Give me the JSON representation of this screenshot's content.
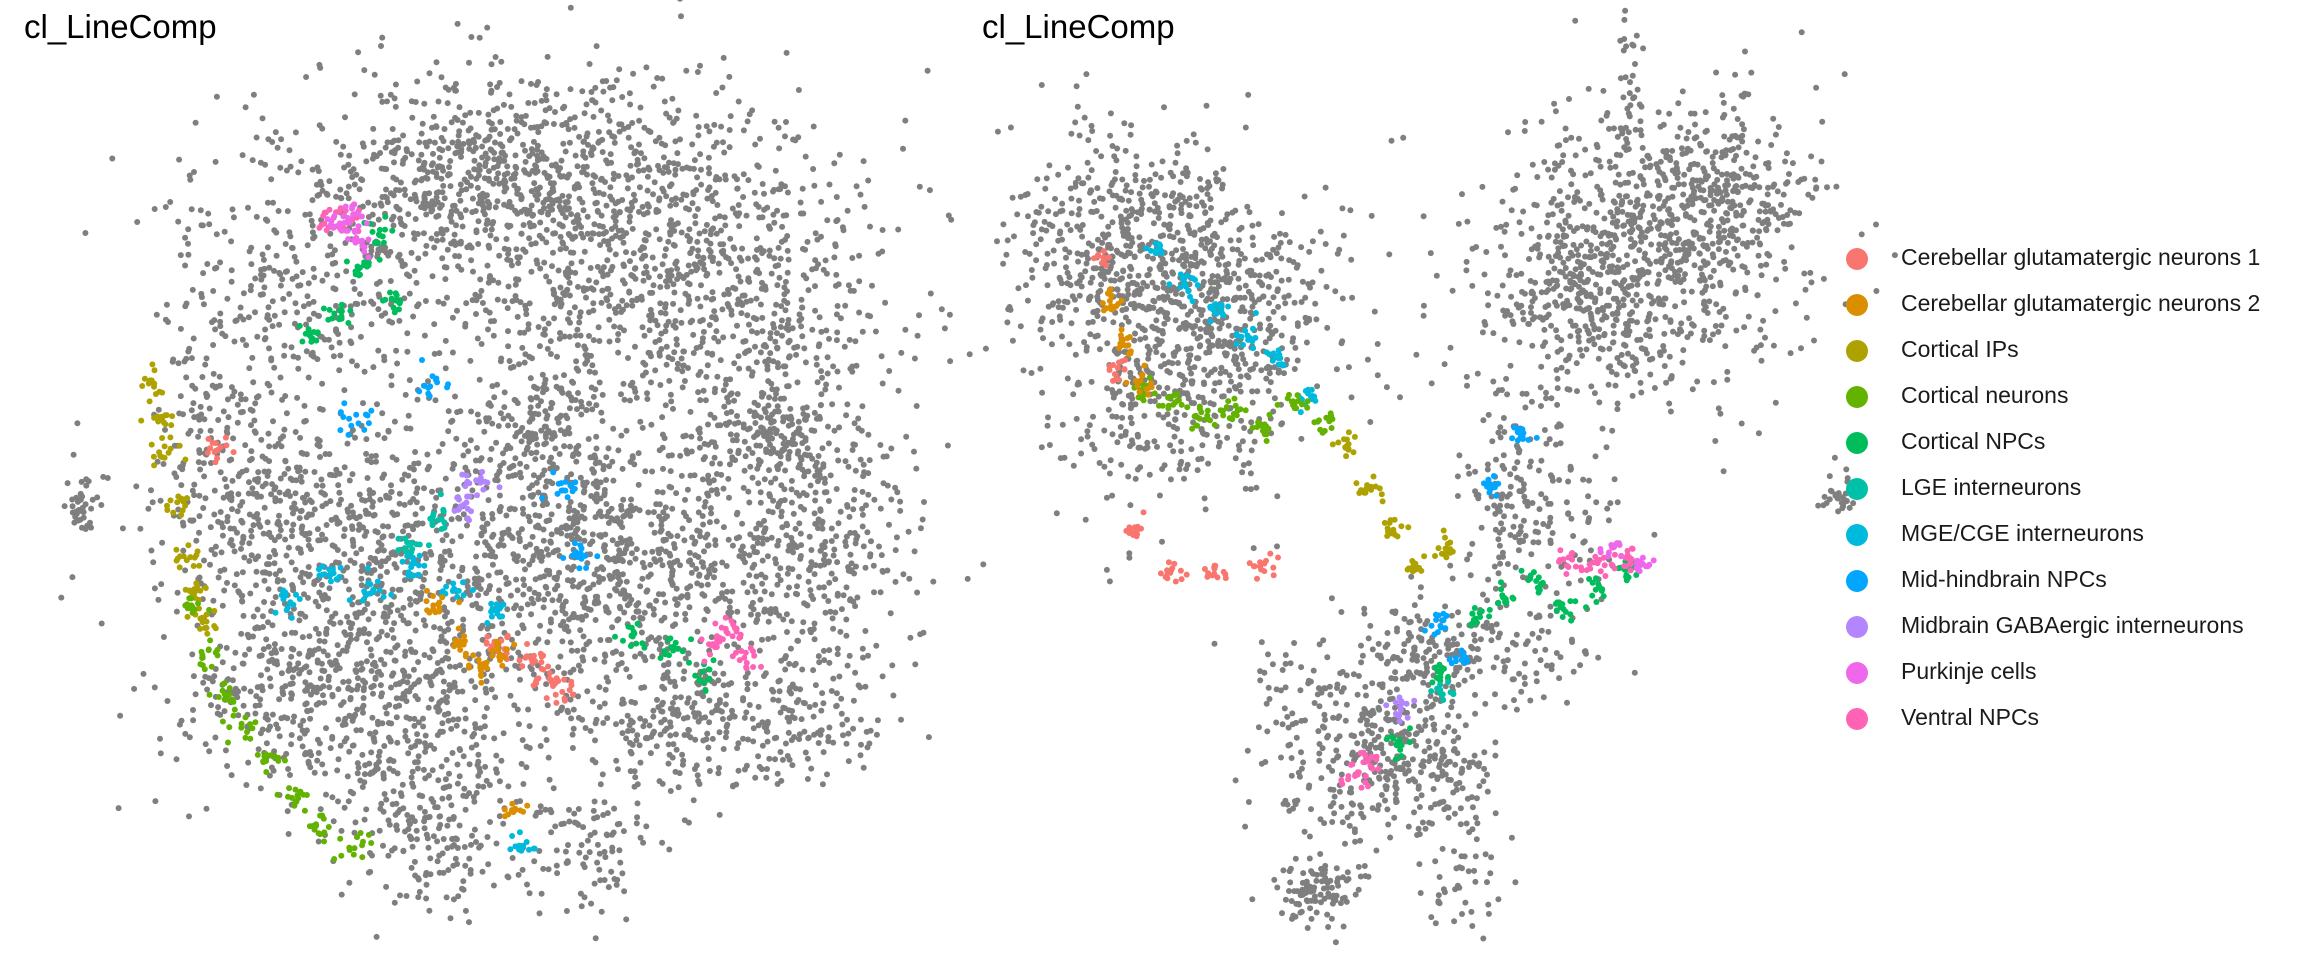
{
  "chart_data": [
    {
      "type": "scatter",
      "title": "cl_LineComp",
      "embedding": "left panel (circular embedding)",
      "xlabel": "",
      "ylabel": "",
      "grid": false,
      "legend": "none",
      "background_color": "#7f7f7f",
      "clusters": [
        {
          "category": "Cortical IPs",
          "x": [
            0.11,
            0.12,
            0.13,
            0.14,
            0.15,
            0.16,
            0.17
          ],
          "y": [
            0.36,
            0.4,
            0.44,
            0.5,
            0.56,
            0.6,
            0.64
          ]
        },
        {
          "category": "Cortical neurons",
          "x": [
            0.16,
            0.18,
            0.2,
            0.22,
            0.25,
            0.28,
            0.31,
            0.35
          ],
          "y": [
            0.62,
            0.68,
            0.72,
            0.76,
            0.8,
            0.84,
            0.88,
            0.9
          ]
        },
        {
          "category": "Cortical NPCs",
          "x": [
            0.3,
            0.33,
            0.36,
            0.38,
            0.4,
            0.68,
            0.73,
            0.77
          ],
          "y": [
            0.3,
            0.28,
            0.22,
            0.18,
            0.26,
            0.65,
            0.67,
            0.7
          ]
        },
        {
          "category": "MGE/CGE interneurons",
          "x": [
            0.27,
            0.32,
            0.37,
            0.42,
            0.47,
            0.52,
            0.55
          ],
          "y": [
            0.62,
            0.58,
            0.6,
            0.57,
            0.6,
            0.63,
            0.9
          ]
        },
        {
          "category": "Cerebellar glutamatergic neurons 1",
          "x": [
            0.52,
            0.56,
            0.58,
            0.6,
            0.19
          ],
          "y": [
            0.66,
            0.68,
            0.7,
            0.72,
            0.43
          ]
        },
        {
          "category": "Cerebellar glutamatergic neurons 2",
          "x": [
            0.45,
            0.48,
            0.5,
            0.52,
            0.54
          ],
          "y": [
            0.62,
            0.66,
            0.69,
            0.68,
            0.86
          ]
        },
        {
          "category": "Ventral NPCs",
          "x": [
            0.78,
            0.8,
            0.82,
            0.32,
            0.34
          ],
          "y": [
            0.66,
            0.65,
            0.68,
            0.16,
            0.17
          ]
        },
        {
          "category": "Purkinje cells",
          "x": [
            0.33,
            0.36,
            0.35
          ],
          "y": [
            0.17,
            0.19,
            0.16
          ]
        },
        {
          "category": "Mid-hindbrain NPCs",
          "x": [
            0.35,
            0.44,
            0.6,
            0.62
          ],
          "y": [
            0.4,
            0.36,
            0.48,
            0.56
          ]
        },
        {
          "category": "LGE interneurons",
          "x": [
            0.42,
            0.45
          ],
          "y": [
            0.55,
            0.52
          ]
        },
        {
          "category": "Midbrain GABAergic interneurons",
          "x": [
            0.48,
            0.5
          ],
          "y": [
            0.5,
            0.47
          ]
        }
      ]
    },
    {
      "type": "scatter",
      "title": "cl_LineComp",
      "embedding": "right panel (branched embedding)",
      "xlabel": "",
      "ylabel": "",
      "grid": false,
      "legend": "right",
      "background_color": "#7f7f7f",
      "clusters": [
        {
          "category": "MGE/CGE interneurons",
          "x": [
            0.18,
            0.22,
            0.26,
            0.3,
            0.34,
            0.38
          ],
          "y": [
            0.2,
            0.24,
            0.27,
            0.3,
            0.33,
            0.37
          ]
        },
        {
          "category": "Cortical neurons",
          "x": [
            0.16,
            0.2,
            0.24,
            0.28,
            0.32,
            0.36,
            0.4
          ],
          "y": [
            0.37,
            0.38,
            0.4,
            0.39,
            0.41,
            0.38,
            0.4
          ]
        },
        {
          "category": "Cortical IPs",
          "x": [
            0.43,
            0.46,
            0.49,
            0.52,
            0.56
          ],
          "y": [
            0.43,
            0.48,
            0.53,
            0.57,
            0.55
          ]
        },
        {
          "category": "Cerebellar glutamatergic neurons 1",
          "x": [
            0.11,
            0.13,
            0.15,
            0.2,
            0.26,
            0.32
          ],
          "y": [
            0.21,
            0.34,
            0.53,
            0.58,
            0.58,
            0.57
          ]
        },
        {
          "category": "Cerebellar glutamatergic neurons 2",
          "x": [
            0.12,
            0.14,
            0.16
          ],
          "y": [
            0.26,
            0.31,
            0.36
          ]
        },
        {
          "category": "Cortical NPCs",
          "x": [
            0.6,
            0.64,
            0.68,
            0.72,
            0.76,
            0.8,
            0.55,
            0.5
          ],
          "y": [
            0.63,
            0.61,
            0.59,
            0.62,
            0.6,
            0.58,
            0.7,
            0.78
          ]
        },
        {
          "category": "Ventral NPCs",
          "x": [
            0.72,
            0.76,
            0.8,
            0.44,
            0.46
          ],
          "y": [
            0.56,
            0.57,
            0.56,
            0.82,
            0.8
          ]
        },
        {
          "category": "Purkinje cells",
          "x": [
            0.78,
            0.82
          ],
          "y": [
            0.55,
            0.57
          ]
        },
        {
          "category": "Mid-hindbrain NPCs",
          "x": [
            0.55,
            0.58,
            0.62,
            0.66
          ],
          "y": [
            0.64,
            0.68,
            0.48,
            0.42
          ]
        },
        {
          "category": "LGE interneurons",
          "x": [
            0.56
          ],
          "y": [
            0.72
          ]
        },
        {
          "category": "Midbrain GABAergic interneurons",
          "x": [
            0.5
          ],
          "y": [
            0.74
          ]
        }
      ]
    }
  ],
  "legend": {
    "items": [
      {
        "label": "Cerebellar glutamatergic neurons 1",
        "color": "#F8766D"
      },
      {
        "label": "Cerebellar glutamatergic neurons 2",
        "color": "#DB8E00"
      },
      {
        "label": "Cortical IPs",
        "color": "#AEA200"
      },
      {
        "label": "Cortical neurons",
        "color": "#64B200"
      },
      {
        "label": "Cortical NPCs",
        "color": "#00BD5C"
      },
      {
        "label": "LGE interneurons",
        "color": "#00C1A7"
      },
      {
        "label": "MGE/CGE interneurons",
        "color": "#00BADE"
      },
      {
        "label": "Mid-hindbrain NPCs",
        "color": "#00A6FF"
      },
      {
        "label": "Midbrain GABAergic interneurons",
        "color": "#B385FF"
      },
      {
        "label": "Purkinje cells",
        "color": "#EF67EB"
      },
      {
        "label": "Ventral NPCs",
        "color": "#FF63B6"
      }
    ]
  }
}
